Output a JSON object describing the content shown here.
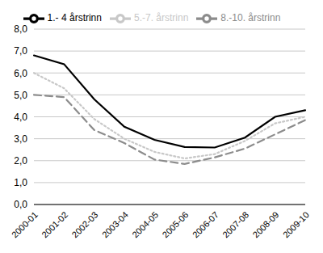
{
  "chart_data": {
    "type": "line",
    "categories": [
      "2000-01",
      "2001-02",
      "2002-03",
      "2003-04",
      "2004-05",
      "2005-06",
      "2006-07",
      "2007-08",
      "2008-09",
      "2009-10"
    ],
    "series": [
      {
        "name": "1.- 4 årstrinn",
        "color": "#000000",
        "line_style": "solid",
        "values": [
          6.8,
          6.4,
          4.8,
          3.55,
          2.95,
          2.62,
          2.6,
          3.05,
          4.0,
          4.3
        ]
      },
      {
        "name": "5.-7. årstrinn",
        "color": "#c8c8c8",
        "line_style": "dotted",
        "values": [
          6.0,
          5.3,
          3.9,
          3.0,
          2.4,
          2.1,
          2.3,
          2.9,
          3.7,
          4.0
        ]
      },
      {
        "name": "8.-10. årstrinn",
        "color": "#8c8c8c",
        "line_style": "dashed",
        "values": [
          5.0,
          4.9,
          3.4,
          2.8,
          2.05,
          1.85,
          2.15,
          2.55,
          3.2,
          3.85
        ]
      }
    ],
    "ylim": [
      0,
      8
    ],
    "yticks": [
      {
        "value": 0,
        "label": "0,0"
      },
      {
        "value": 1,
        "label": "1,0"
      },
      {
        "value": 2,
        "label": "2,0"
      },
      {
        "value": 3,
        "label": "3,0"
      },
      {
        "value": 4,
        "label": "4,0"
      },
      {
        "value": 5,
        "label": "5,0"
      },
      {
        "value": 6,
        "label": "6,0"
      },
      {
        "value": 7,
        "label": "7,0"
      },
      {
        "value": 8,
        "label": "8,0"
      }
    ],
    "grid": true,
    "legend": "top"
  }
}
